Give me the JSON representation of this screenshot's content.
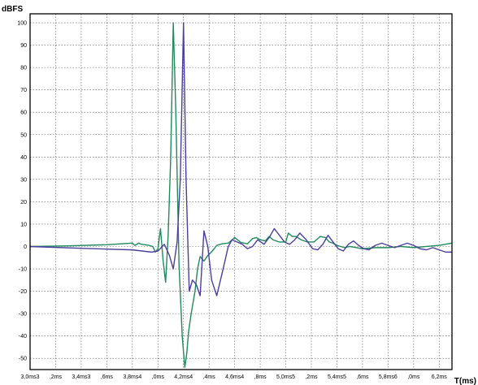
{
  "chart_data": {
    "type": "line",
    "ylabel": "dBFS",
    "xlabel": "T(ms)",
    "ylim": [
      -55,
      104
    ],
    "xlim": [
      3.0,
      6.3
    ],
    "grid": true,
    "legend": "none",
    "y_ticks": [
      100,
      90,
      80,
      70,
      60,
      50,
      40,
      30,
      20,
      10,
      0,
      -10,
      -20,
      -30,
      -40,
      -50
    ],
    "x_ticks": [
      {
        "value": 3.0,
        "label": "3,0ms3"
      },
      {
        "value": 3.2,
        "label": ",2ms"
      },
      {
        "value": 3.4,
        "label": "3,4ms3"
      },
      {
        "value": 3.6,
        "label": ",6ms"
      },
      {
        "value": 3.8,
        "label": "3,8ms4"
      },
      {
        "value": 4.0,
        "label": ",0ms"
      },
      {
        "value": 4.2,
        "label": "4,2ms4"
      },
      {
        "value": 4.4,
        "label": ",4ms"
      },
      {
        "value": 4.6,
        "label": "4,6ms4"
      },
      {
        "value": 4.8,
        "label": ",8ms"
      },
      {
        "value": 5.0,
        "label": "5,0ms5"
      },
      {
        "value": 5.2,
        "label": ",2ms"
      },
      {
        "value": 5.4,
        "label": "5,4ms5"
      },
      {
        "value": 5.6,
        "label": ",6ms"
      },
      {
        "value": 5.8,
        "label": "5,8ms6"
      },
      {
        "value": 6.0,
        "label": ",0ms"
      },
      {
        "value": 6.2,
        "label": "6,2ms"
      }
    ],
    "series": [
      {
        "color": "#1f8a5b",
        "x": [
          3.0,
          3.3,
          3.6,
          3.8,
          3.82,
          3.85,
          3.87,
          3.9,
          3.93,
          3.96,
          3.98,
          4.0,
          4.02,
          4.04,
          4.06,
          4.08,
          4.1,
          4.12,
          4.14,
          4.165,
          4.19,
          4.21,
          4.225,
          4.24,
          4.26,
          4.29,
          4.31,
          4.33,
          4.36,
          4.39,
          4.41,
          4.44,
          4.46,
          4.5,
          4.55,
          4.6,
          4.65,
          4.7,
          4.74,
          4.77,
          4.8,
          4.84,
          4.87,
          4.9,
          4.95,
          5.0,
          5.02,
          5.05,
          5.08,
          5.12,
          5.17,
          5.22,
          5.27,
          5.31,
          5.34,
          5.37,
          5.4,
          5.43,
          5.46,
          5.5,
          5.55,
          5.6,
          5.7,
          5.8,
          5.9,
          6.0,
          6.1,
          6.2,
          6.3
        ],
        "values": [
          0,
          0.3,
          0.8,
          1.5,
          0.5,
          1.5,
          1.0,
          0.8,
          0.5,
          0.0,
          -2.5,
          -1.0,
          8.0,
          -6.0,
          -16.0,
          5.0,
          40.0,
          100.0,
          60.0,
          -8.0,
          -40.0,
          -54.0,
          -48.0,
          -38.0,
          -30.0,
          -20.0,
          -10.0,
          -4.5,
          -6.5,
          -4.0,
          -3.0,
          -1.0,
          0.5,
          1.2,
          1.5,
          4.0,
          1.8,
          1.2,
          3.5,
          4.0,
          3.0,
          2.5,
          4.5,
          3.0,
          2.0,
          2.0,
          6.0,
          4.5,
          4.5,
          3.0,
          2.0,
          2.0,
          4.5,
          4.0,
          2.0,
          1.5,
          0.5,
          0.0,
          -0.5,
          0.0,
          -0.5,
          -1.0,
          -0.5,
          -0.5,
          0.0,
          -0.5,
          0.0,
          0.5,
          1.5
        ]
      },
      {
        "color": "#4a3f9b",
        "x": [
          3.0,
          3.4,
          3.8,
          3.95,
          4.0,
          4.05,
          4.09,
          4.12,
          4.15,
          4.175,
          4.2,
          4.22,
          4.245,
          4.27,
          4.3,
          4.33,
          4.36,
          4.39,
          4.42,
          4.46,
          4.51,
          4.55,
          4.58,
          4.62,
          4.66,
          4.7,
          4.74,
          4.78,
          4.83,
          4.87,
          4.91,
          4.95,
          4.99,
          5.03,
          5.07,
          5.11,
          5.16,
          5.21,
          5.25,
          5.29,
          5.33,
          5.37,
          5.41,
          5.45,
          5.49,
          5.53,
          5.57,
          5.61,
          5.65,
          5.7,
          5.75,
          5.8,
          5.85,
          5.9,
          5.95,
          6.0,
          6.05,
          6.1,
          6.15,
          6.2,
          6.25,
          6.3
        ],
        "values": [
          0,
          -0.8,
          -1.5,
          -2.5,
          -2.0,
          1.0,
          -4.0,
          -10.0,
          2.0,
          30.0,
          100.0,
          30.0,
          -20.0,
          -15.0,
          -17.0,
          -22.0,
          7.0,
          0.0,
          -15.0,
          -22.0,
          -10.0,
          0.0,
          3.0,
          2.0,
          1.0,
          -1.0,
          0.0,
          3.0,
          1.0,
          4.0,
          8.0,
          5.0,
          2.0,
          1.0,
          3.0,
          6.0,
          3.0,
          -1.0,
          -1.5,
          1.0,
          5.0,
          2.0,
          -1.0,
          -2.0,
          1.0,
          2.5,
          0.5,
          -1.0,
          -1.5,
          0.5,
          1.5,
          0.5,
          -0.5,
          0.5,
          1.5,
          0.5,
          -1.0,
          -1.5,
          -0.5,
          -1.5,
          -2.5,
          -2.5
        ]
      }
    ]
  }
}
